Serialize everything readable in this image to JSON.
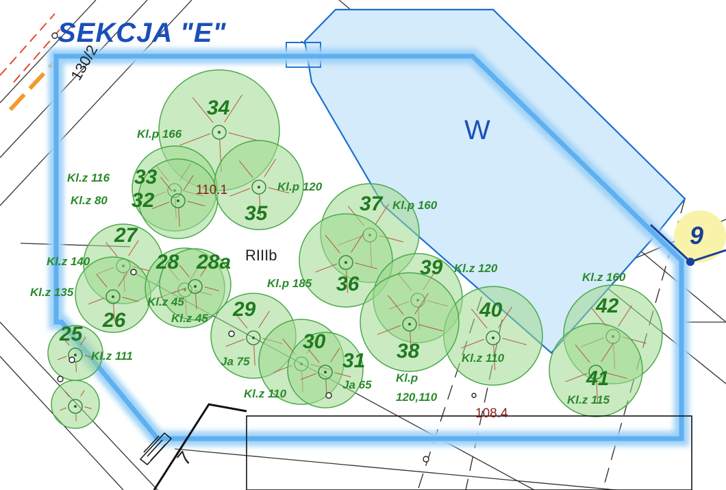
{
  "map": {
    "section_title": "SEKCJA \"E\"",
    "zone_label": "W",
    "parcel_label": "130/2",
    "soil_class_label": "RIIIb",
    "sheet_number": "9",
    "building_number": "7",
    "elevations": [
      "110.1",
      "108.4"
    ],
    "colors": {
      "boundary": "#5fb0f0",
      "zone_fill": "#d4ebfb",
      "zone_stroke": "#1a6fd0",
      "tree_fill": "#9fd88f",
      "tree_stroke": "#4aa84a",
      "label_green": "#1f7a1f",
      "title_blue": "#1a4fb8",
      "badge_fill": "#f8f3a8"
    },
    "trees": [
      {
        "id": "34",
        "species": "Kl.p 166"
      },
      {
        "id": "33",
        "species": "Kl.z 116"
      },
      {
        "id": "32",
        "species": "Kl.z 80"
      },
      {
        "id": "35",
        "species": "Kl.p 120"
      },
      {
        "id": "37",
        "species": "Kl.p 160"
      },
      {
        "id": "36",
        "species": "Kl.p 185"
      },
      {
        "id": "27",
        "species": "Kl.z 140"
      },
      {
        "id": "26",
        "species": "Kl.z 135"
      },
      {
        "id": "28",
        "species": "Kl.z 45"
      },
      {
        "id": "28a",
        "species": "Kl.z 45"
      },
      {
        "id": "39",
        "species": "Kl.z 120"
      },
      {
        "id": "40",
        "species": "Kl.z 110"
      },
      {
        "id": "42",
        "species": "Kl.z 160"
      },
      {
        "id": "41",
        "species": "Kl.z 115"
      },
      {
        "id": "29",
        "species": "Ja 75"
      },
      {
        "id": "30",
        "species": "Kl.z 110"
      },
      {
        "id": "31",
        "species": "Ja 65"
      },
      {
        "id": "38",
        "species": "Kl.p"
      },
      {
        "id": "25",
        "species": "Kl.z 111"
      }
    ],
    "tree_38_extra": "120,110"
  }
}
